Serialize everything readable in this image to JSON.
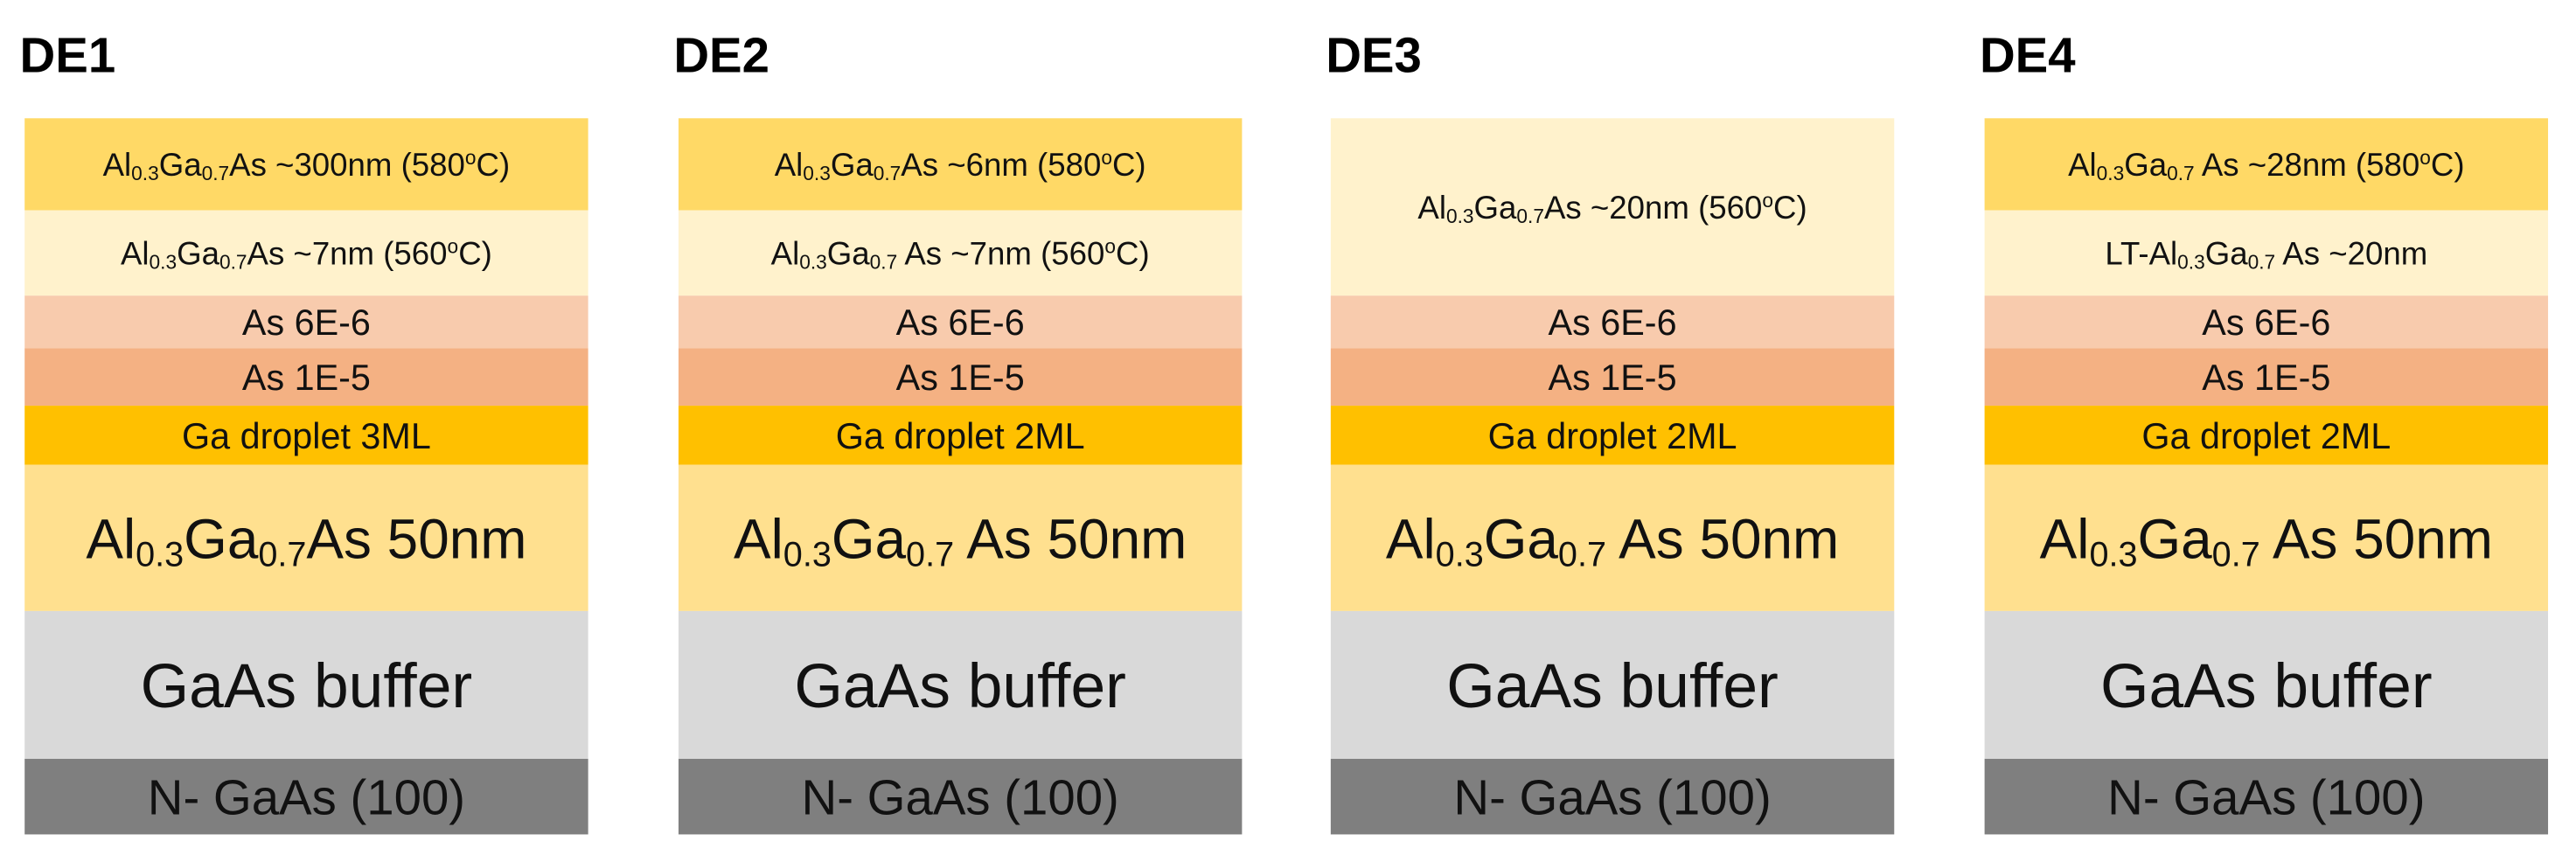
{
  "stacks": [
    {
      "title": "DE1",
      "layers": [
        {
          "color": "#ffd966",
          "parts": [
            {
              "text": "Al"
            },
            {
              "text": "0.3",
              "script": "sub"
            },
            {
              "text": "Ga"
            },
            {
              "text": "0.7",
              "script": "sub"
            },
            {
              "text": "As ~300nm (580"
            },
            {
              "text": "o",
              "script": "sup"
            },
            {
              "text": "C)"
            }
          ]
        },
        {
          "color": "#fff2cc",
          "parts": [
            {
              "text": "Al"
            },
            {
              "text": "0.3",
              "script": "sub"
            },
            {
              "text": "Ga"
            },
            {
              "text": "0.7",
              "script": "sub"
            },
            {
              "text": "As ~7nm (560"
            },
            {
              "text": "o",
              "script": "sup"
            },
            {
              "text": "C)"
            }
          ]
        },
        {
          "color": "#f8cbad",
          "parts": [
            {
              "text": "As 6E-6"
            }
          ]
        },
        {
          "color": "#f4b183",
          "parts": [
            {
              "text": "As 1E-5"
            }
          ]
        },
        {
          "color": "#ffc000",
          "parts": [
            {
              "text": "Ga droplet 3ML"
            }
          ]
        },
        {
          "color": "#ffe08f",
          "parts": [
            {
              "text": "Al"
            },
            {
              "text": "0.3",
              "script": "sub"
            },
            {
              "text": "Ga"
            },
            {
              "text": "0.7",
              "script": "sub"
            },
            {
              "text": "As 50nm"
            }
          ]
        },
        {
          "color": "#d9d9d9",
          "parts": [
            {
              "text": "GaAs buffer"
            }
          ]
        },
        {
          "color": "#7f7f7f",
          "parts": [
            {
              "text": "N- GaAs (100)"
            }
          ]
        }
      ]
    },
    {
      "title": "DE2",
      "layers": [
        {
          "color": "#ffd966",
          "parts": [
            {
              "text": "Al"
            },
            {
              "text": "0.3",
              "script": "sub"
            },
            {
              "text": "Ga"
            },
            {
              "text": "0.7",
              "script": "sub"
            },
            {
              "text": "As ~6nm (580"
            },
            {
              "text": "o",
              "script": "sup"
            },
            {
              "text": "C)"
            }
          ]
        },
        {
          "color": "#fff2cc",
          "parts": [
            {
              "text": "Al"
            },
            {
              "text": "0.3",
              "script": "sub"
            },
            {
              "text": "Ga"
            },
            {
              "text": "0.7",
              "script": "sub"
            },
            {
              "text": " As ~7nm (560"
            },
            {
              "text": "o",
              "script": "sup"
            },
            {
              "text": "C)"
            }
          ]
        },
        {
          "color": "#f8cbad",
          "parts": [
            {
              "text": "As 6E-6"
            }
          ]
        },
        {
          "color": "#f4b183",
          "parts": [
            {
              "text": "As 1E-5"
            }
          ]
        },
        {
          "color": "#ffc000",
          "parts": [
            {
              "text": "Ga droplet 2ML"
            }
          ]
        },
        {
          "color": "#ffe08f",
          "parts": [
            {
              "text": "Al"
            },
            {
              "text": "0.3",
              "script": "sub"
            },
            {
              "text": "Ga"
            },
            {
              "text": "0.7",
              "script": "sub"
            },
            {
              "text": " As 50nm"
            }
          ]
        },
        {
          "color": "#d9d9d9",
          "parts": [
            {
              "text": "GaAs buffer"
            }
          ]
        },
        {
          "color": "#7f7f7f",
          "parts": [
            {
              "text": "N- GaAs (100)"
            }
          ]
        }
      ]
    },
    {
      "title": "DE3",
      "layers": [
        {
          "color": "#fff2cc",
          "parts": [
            {
              "text": "Al"
            },
            {
              "text": "0.3",
              "script": "sub"
            },
            {
              "text": "Ga"
            },
            {
              "text": "0.7",
              "script": "sub"
            },
            {
              "text": "As ~20nm (560"
            },
            {
              "text": "o",
              "script": "sup"
            },
            {
              "text": "C)"
            }
          ]
        },
        {
          "color": "#f8cbad",
          "parts": [
            {
              "text": "As 6E-6"
            }
          ]
        },
        {
          "color": "#f4b183",
          "parts": [
            {
              "text": "As 1E-5"
            }
          ]
        },
        {
          "color": "#ffc000",
          "parts": [
            {
              "text": "Ga droplet 2ML"
            }
          ]
        },
        {
          "color": "#ffe08f",
          "parts": [
            {
              "text": "Al"
            },
            {
              "text": "0.3",
              "script": "sub"
            },
            {
              "text": "Ga"
            },
            {
              "text": "0.7",
              "script": "sub"
            },
            {
              "text": " As 50nm"
            }
          ]
        },
        {
          "color": "#d9d9d9",
          "parts": [
            {
              "text": "GaAs buffer"
            }
          ]
        },
        {
          "color": "#7f7f7f",
          "parts": [
            {
              "text": "N- GaAs (100)"
            }
          ]
        }
      ]
    },
    {
      "title": "DE4",
      "layers": [
        {
          "color": "#ffd966",
          "parts": [
            {
              "text": "Al"
            },
            {
              "text": "0.3",
              "script": "sub"
            },
            {
              "text": "Ga"
            },
            {
              "text": "0.7",
              "script": "sub"
            },
            {
              "text": "  As ~28nm (580"
            },
            {
              "text": "o",
              "script": "sup"
            },
            {
              "text": "C)"
            }
          ]
        },
        {
          "color": "#fff2cc",
          "parts": [
            {
              "text": "LT-Al"
            },
            {
              "text": "0.3",
              "script": "sub"
            },
            {
              "text": "Ga"
            },
            {
              "text": "0.7",
              "script": "sub"
            },
            {
              "text": "  As ~20nm"
            }
          ]
        },
        {
          "color": "#f8cbad",
          "parts": [
            {
              "text": "As 6E-6"
            }
          ]
        },
        {
          "color": "#f4b183",
          "parts": [
            {
              "text": "As 1E-5"
            }
          ]
        },
        {
          "color": "#ffc000",
          "parts": [
            {
              "text": "Ga droplet 2ML"
            }
          ]
        },
        {
          "color": "#ffe08f",
          "parts": [
            {
              "text": "Al"
            },
            {
              "text": "0.3",
              "script": "sub"
            },
            {
              "text": "Ga"
            },
            {
              "text": "0.7",
              "script": "sub"
            },
            {
              "text": " As 50nm"
            }
          ]
        },
        {
          "color": "#d9d9d9",
          "parts": [
            {
              "text": "GaAs buffer"
            }
          ]
        },
        {
          "color": "#7f7f7f",
          "parts": [
            {
              "text": "N- GaAs (100)"
            }
          ]
        }
      ]
    }
  ]
}
